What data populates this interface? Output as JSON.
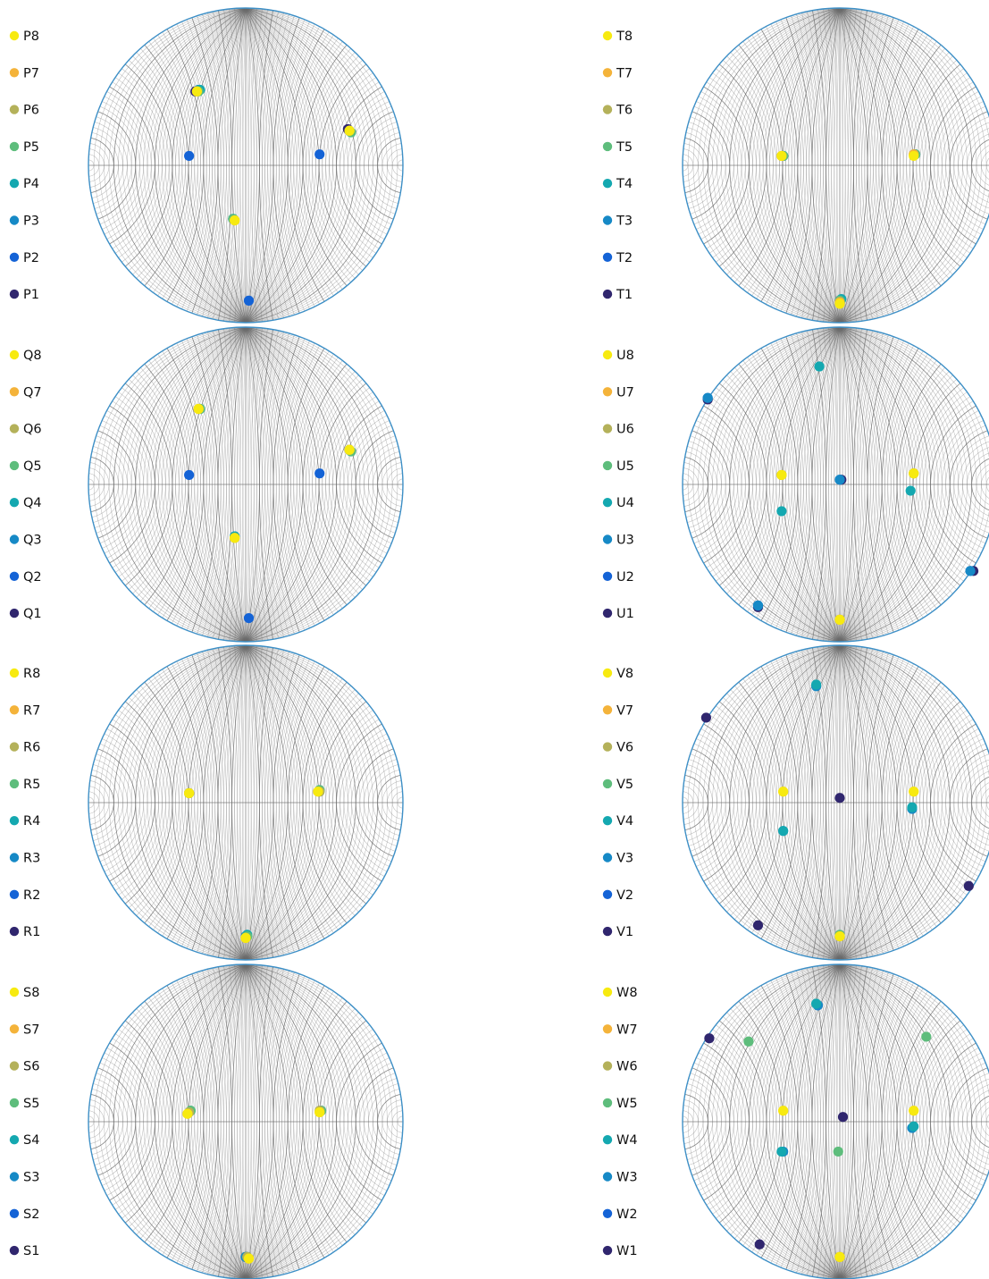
{
  "colors": {
    "1": "#30266e",
    "2": "#1463d6",
    "3": "#1689c6",
    "4": "#14a8b0",
    "5": "#5ebd7c",
    "6": "#b4b15a",
    "7": "#f4b33a",
    "8": "#f7ea10",
    "rim": "#3d8fc6",
    "grid": "#6b6b6b"
  },
  "chart_data": [
    {
      "type": "scatter",
      "projection": "stereonet",
      "title": "",
      "legend_placement": "left",
      "series": [
        {
          "name": "P8",
          "points": [
            [
              -0.31,
              0.47
            ],
            [
              0.66,
              0.22
            ],
            [
              -0.07,
              -0.35
            ]
          ]
        },
        {
          "name": "P7",
          "points": [
            [
              -0.31,
              0.47
            ],
            [
              0.66,
              0.22
            ],
            [
              -0.07,
              -0.35
            ]
          ]
        },
        {
          "name": "P6",
          "points": [
            [
              -0.31,
              0.47
            ],
            [
              0.66,
              0.22
            ],
            [
              -0.07,
              -0.35
            ]
          ]
        },
        {
          "name": "P5",
          "points": [
            [
              -0.3,
              0.47
            ],
            [
              0.67,
              0.21
            ],
            [
              -0.08,
              -0.34
            ]
          ]
        },
        {
          "name": "P4",
          "points": [
            [
              -0.29,
              0.48
            ],
            [
              0.67,
              0.21
            ],
            [
              -0.08,
              -0.34
            ]
          ]
        },
        {
          "name": "P3",
          "points": [
            [
              -0.3,
              0.48
            ],
            [
              0.66,
              0.22
            ],
            [
              -0.08,
              -0.34
            ]
          ]
        },
        {
          "name": "P2",
          "points": [
            [
              -0.36,
              0.06
            ],
            [
              0.47,
              0.07
            ],
            [
              0.02,
              -0.86
            ]
          ]
        },
        {
          "name": "P1",
          "points": [
            [
              -0.32,
              0.47
            ],
            [
              0.65,
              0.23
            ]
          ]
        }
      ]
    },
    {
      "type": "scatter",
      "projection": "stereonet",
      "title": "",
      "legend_placement": "left",
      "series": [
        {
          "name": "T8",
          "points": [
            [
              -0.37,
              0.06
            ],
            [
              0.47,
              0.06
            ],
            [
              0.0,
              -0.88
            ]
          ]
        },
        {
          "name": "T7",
          "points": [
            [
              -0.37,
              0.06
            ],
            [
              0.47,
              0.07
            ],
            [
              0.0,
              -0.87
            ]
          ]
        },
        {
          "name": "T6",
          "points": [
            [
              -0.37,
              0.06
            ],
            [
              0.47,
              0.07
            ],
            [
              0.0,
              -0.87
            ]
          ]
        },
        {
          "name": "T5",
          "points": [
            [
              -0.36,
              0.06
            ],
            [
              0.48,
              0.07
            ],
            [
              0.0,
              -0.86
            ]
          ]
        },
        {
          "name": "T4",
          "points": [
            [
              -0.36,
              0.06
            ],
            [
              0.48,
              0.07
            ],
            [
              0.01,
              -0.85
            ]
          ]
        },
        {
          "name": "T3",
          "points": [
            [
              -0.36,
              0.06
            ],
            [
              0.48,
              0.07
            ],
            [
              0.0,
              -0.86
            ]
          ]
        },
        {
          "name": "T2",
          "points": [
            [
              -0.36,
              0.06
            ],
            [
              0.48,
              0.07
            ],
            [
              0.0,
              -0.86
            ]
          ]
        },
        {
          "name": "T1",
          "points": [
            [
              0.0,
              -0.86
            ]
          ]
        }
      ]
    },
    {
      "type": "scatter",
      "projection": "stereonet",
      "title": "",
      "legend_placement": "left",
      "series": [
        {
          "name": "Q8",
          "points": [
            [
              -0.3,
              0.48
            ],
            [
              0.66,
              0.22
            ],
            [
              -0.07,
              -0.34
            ]
          ]
        },
        {
          "name": "Q7",
          "points": [
            [
              -0.3,
              0.48
            ],
            [
              0.66,
              0.22
            ],
            [
              -0.07,
              -0.34
            ]
          ]
        },
        {
          "name": "Q6",
          "points": [
            [
              -0.3,
              0.48
            ],
            [
              0.66,
              0.22
            ],
            [
              -0.07,
              -0.34
            ]
          ]
        },
        {
          "name": "Q5",
          "points": [
            [
              -0.29,
              0.48
            ],
            [
              0.67,
              0.21
            ],
            [
              -0.07,
              -0.34
            ]
          ]
        },
        {
          "name": "Q4",
          "points": [
            [
              -0.29,
              0.48
            ],
            [
              0.67,
              0.21
            ],
            [
              -0.07,
              -0.33
            ]
          ]
        },
        {
          "name": "Q3",
          "points": [
            [
              -0.29,
              0.48
            ],
            [
              0.66,
              0.22
            ],
            [
              -0.07,
              -0.33
            ]
          ]
        },
        {
          "name": "Q2",
          "points": [
            [
              -0.36,
              0.06
            ],
            [
              0.47,
              0.07
            ],
            [
              0.02,
              -0.85
            ]
          ]
        },
        {
          "name": "Q1",
          "points": []
        }
      ]
    },
    {
      "type": "scatter",
      "projection": "stereonet",
      "title": "",
      "legend_placement": "left",
      "series": [
        {
          "name": "U8",
          "points": [
            [
              -0.37,
              0.06
            ],
            [
              0.47,
              0.07
            ],
            [
              0.0,
              -0.86
            ]
          ]
        },
        {
          "name": "U7",
          "points": [
            [
              -0.37,
              0.06
            ],
            [
              0.47,
              0.07
            ],
            [
              0.0,
              -0.86
            ]
          ]
        },
        {
          "name": "U6",
          "points": [
            [
              -0.37,
              0.06
            ],
            [
              0.47,
              0.07
            ],
            [
              0.0,
              -0.86
            ]
          ]
        },
        {
          "name": "U5",
          "points": [
            [
              -0.37,
              0.06
            ],
            [
              0.47,
              0.07
            ]
          ]
        },
        {
          "name": "U4",
          "points": [
            [
              -0.13,
              0.75
            ],
            [
              -0.37,
              -0.17
            ],
            [
              0.45,
              -0.04
            ]
          ]
        },
        {
          "name": "U3",
          "points": [
            [
              -0.84,
              0.55
            ],
            [
              0.83,
              -0.55
            ],
            [
              -0.52,
              -0.77
            ],
            [
              0.0,
              0.03
            ]
          ]
        },
        {
          "name": "U2",
          "points": [
            [
              -0.84,
              0.55
            ],
            [
              0.83,
              -0.55
            ],
            [
              -0.52,
              -0.77
            ],
            [
              0.0,
              0.03
            ]
          ]
        },
        {
          "name": "U1",
          "points": [
            [
              -0.84,
              0.54
            ],
            [
              0.85,
              -0.55
            ],
            [
              -0.52,
              -0.78
            ],
            [
              0.01,
              0.03
            ]
          ]
        }
      ]
    },
    {
      "type": "scatter",
      "projection": "stereonet",
      "title": "",
      "legend_placement": "left",
      "series": [
        {
          "name": "R8",
          "points": [
            [
              -0.36,
              0.06
            ],
            [
              0.46,
              0.07
            ],
            [
              0.0,
              -0.86
            ]
          ]
        },
        {
          "name": "R7",
          "points": [
            [
              -0.36,
              0.06
            ],
            [
              0.46,
              0.07
            ],
            [
              0.0,
              -0.86
            ]
          ]
        },
        {
          "name": "R6",
          "points": [
            [
              -0.36,
              0.06
            ],
            [
              0.47,
              0.07
            ],
            [
              0.0,
              -0.86
            ]
          ]
        },
        {
          "name": "R5",
          "points": [
            [
              -0.36,
              0.06
            ],
            [
              0.47,
              0.08
            ],
            [
              0.01,
              -0.85
            ]
          ]
        },
        {
          "name": "R4",
          "points": [
            [
              -0.36,
              0.06
            ],
            [
              0.47,
              0.08
            ],
            [
              0.01,
              -0.84
            ]
          ]
        },
        {
          "name": "R3",
          "points": [
            [
              -0.36,
              0.06
            ],
            [
              0.47,
              0.07
            ],
            [
              0.0,
              -0.85
            ]
          ]
        },
        {
          "name": "R2",
          "points": []
        },
        {
          "name": "R1",
          "points": []
        }
      ]
    },
    {
      "type": "scatter",
      "projection": "stereonet",
      "title": "",
      "legend_placement": "left",
      "series": [
        {
          "name": "V8",
          "points": [
            [
              -0.36,
              0.07
            ],
            [
              0.47,
              0.07
            ],
            [
              0.0,
              -0.85
            ]
          ]
        },
        {
          "name": "V7",
          "points": [
            [
              -0.36,
              0.07
            ],
            [
              0.47,
              0.07
            ],
            [
              0.0,
              -0.85
            ]
          ]
        },
        {
          "name": "V6",
          "points": [
            [
              0.0,
              -0.85
            ]
          ]
        },
        {
          "name": "V5",
          "points": [
            [
              0.0,
              -0.84
            ]
          ]
        },
        {
          "name": "V4",
          "points": [
            [
              -0.15,
              0.75
            ],
            [
              -0.36,
              -0.18
            ],
            [
              0.46,
              -0.03
            ]
          ]
        },
        {
          "name": "V3",
          "points": [
            [
              -0.15,
              0.74
            ],
            [
              -0.36,
              -0.18
            ],
            [
              0.46,
              -0.04
            ]
          ]
        },
        {
          "name": "V2",
          "points": []
        },
        {
          "name": "V1",
          "points": [
            [
              -0.85,
              0.54
            ],
            [
              0.82,
              -0.53
            ],
            [
              -0.52,
              -0.78
            ],
            [
              0.0,
              0.03
            ]
          ]
        }
      ]
    },
    {
      "type": "scatter",
      "projection": "stereonet",
      "title": "",
      "legend_placement": "left",
      "series": [
        {
          "name": "S8",
          "points": [
            [
              -0.37,
              0.05
            ],
            [
              0.47,
              0.06
            ],
            [
              0.02,
              -0.87
            ]
          ]
        },
        {
          "name": "S7",
          "points": [
            [
              -0.37,
              0.05
            ],
            [
              0.47,
              0.06
            ],
            [
              0.02,
              -0.87
            ]
          ]
        },
        {
          "name": "S6",
          "points": [
            [
              -0.36,
              0.06
            ],
            [
              0.47,
              0.07
            ],
            [
              0.01,
              -0.86
            ]
          ]
        },
        {
          "name": "S5",
          "points": [
            [
              -0.35,
              0.07
            ],
            [
              0.48,
              0.07
            ],
            [
              0.01,
              -0.86
            ]
          ]
        },
        {
          "name": "S4",
          "points": [
            [
              -0.35,
              0.07
            ],
            [
              0.48,
              0.07
            ],
            [
              0.01,
              -0.86
            ]
          ]
        },
        {
          "name": "S3",
          "points": [
            [
              -0.36,
              0.06
            ],
            [
              0.48,
              0.07
            ],
            [
              0.0,
              -0.86
            ]
          ]
        },
        {
          "name": "S2",
          "points": []
        },
        {
          "name": "S1",
          "points": [
            [
              0.0,
              -0.86
            ]
          ]
        }
      ]
    },
    {
      "type": "scatter",
      "projection": "stereonet",
      "title": "",
      "legend_placement": "left",
      "series": [
        {
          "name": "W8",
          "points": [
            [
              -0.36,
              0.07
            ],
            [
              0.47,
              0.07
            ],
            [
              0.0,
              -0.86
            ]
          ]
        },
        {
          "name": "W7",
          "points": [
            [
              -0.36,
              0.07
            ],
            [
              0.47,
              0.07
            ],
            [
              0.0,
              -0.86
            ]
          ]
        },
        {
          "name": "W6",
          "points": [
            [
              0.0,
              -0.86
            ]
          ]
        },
        {
          "name": "W5",
          "points": [
            [
              -0.58,
              0.51
            ],
            [
              0.55,
              0.54
            ],
            [
              -0.01,
              -0.19
            ]
          ]
        },
        {
          "name": "W4",
          "points": [
            [
              -0.37,
              -0.19
            ],
            [
              0.47,
              -0.03
            ],
            [
              -0.15,
              0.75
            ]
          ]
        },
        {
          "name": "W3",
          "points": [
            [
              -0.36,
              -0.19
            ],
            [
              0.46,
              -0.04
            ],
            [
              -0.14,
              0.74
            ]
          ]
        },
        {
          "name": "W2",
          "points": [
            [
              -0.14,
              0.74
            ]
          ]
        },
        {
          "name": "W1",
          "points": [
            [
              -0.83,
              0.53
            ],
            [
              0.02,
              0.03
            ],
            [
              -0.51,
              -0.78
            ]
          ]
        }
      ]
    }
  ]
}
